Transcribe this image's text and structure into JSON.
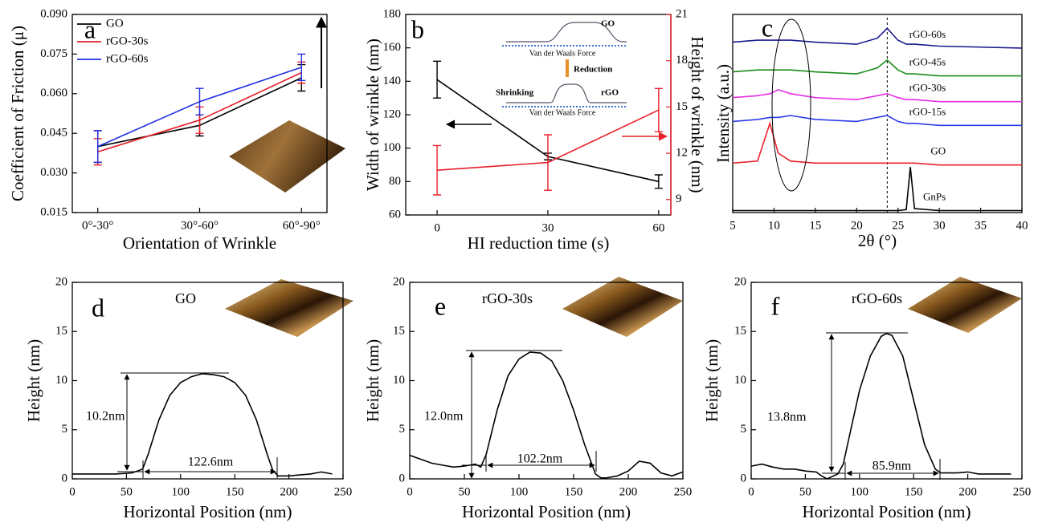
{
  "chart_data": [
    {
      "type": "line",
      "panel_label": "a",
      "xlabel": "Orientation of Wrinkle",
      "ylabel": "Coefficient of Friction (μ)",
      "categories": [
        "0°-30°",
        "30°-60°",
        "60°-90°"
      ],
      "ylim": [
        0.015,
        0.09
      ],
      "yticks": [
        0.015,
        {
          "value": 0.03,
          "label": "0.030"
        },
        0.045,
        {
          "value": 0.06,
          "label": "0.060"
        },
        0.075,
        {
          "value": 0.09,
          "label": "0.090"
        }
      ],
      "legend": "upper left",
      "series": [
        {
          "name": "GO",
          "color": "#000000",
          "values": [
            0.04,
            0.048,
            0.066
          ],
          "errors": [
            0.006,
            0.004,
            0.005
          ]
        },
        {
          "name": "rGO-30s",
          "color": "#e8202a",
          "values": [
            0.038,
            0.05,
            0.068
          ],
          "errors": [
            0.005,
            0.005,
            0.004
          ]
        },
        {
          "name": "rGO-60s",
          "color": "#1f2ee0",
          "values": [
            0.04,
            0.057,
            0.07
          ],
          "errors": [
            0.006,
            0.005,
            0.005
          ]
        }
      ]
    },
    {
      "type": "line",
      "panel_label": "b",
      "xlabel": "HI reduction time (s)",
      "ylabel": "Width of wrinkle (nm)",
      "y2label": "Height of wrinkle (nm)",
      "x": [
        0,
        30,
        60
      ],
      "xlim": [
        -8.5,
        63.3
      ],
      "xticks": [
        0,
        30,
        60
      ],
      "ylim": [
        60,
        180
      ],
      "yticks": [
        60,
        80,
        100,
        120,
        140,
        160,
        180
      ],
      "y2lim": [
        8,
        21
      ],
      "y2ticks": [
        9,
        12,
        15,
        18,
        21
      ],
      "annotations": [
        "GO",
        "Van der Waals Force",
        "Reduction",
        "Shrinking",
        "rGO",
        "Van der Waals Force"
      ],
      "series": [
        {
          "name": "Width of wrinkle",
          "color": "#000000",
          "values": [
            141,
            95,
            80
          ],
          "errors": [
            11,
            2,
            4
          ]
        },
        {
          "name": "Height of wrinkle",
          "color": "#e8202a",
          "axis": "y2",
          "values": [
            10.9,
            11.4,
            14.8
          ],
          "errors": [
            1.6,
            1.8,
            1.4
          ]
        }
      ]
    },
    {
      "type": "line",
      "panel_label": "c",
      "xlabel": "2θ (°)",
      "ylabel": "Intensity (a.u.)",
      "x": [
        5,
        8,
        9.5,
        10.5,
        12,
        15,
        20,
        22.5,
        23.7,
        25,
        26,
        26.5,
        27,
        30,
        40
      ],
      "xlim": [
        5,
        40
      ],
      "xticks": [
        5,
        10,
        15,
        20,
        25,
        30,
        35,
        40
      ],
      "ylim": [
        0,
        10
      ],
      "reference_line_x": 23.7,
      "legend": "inline",
      "series": [
        {
          "name": "rGO-60s",
          "color": "#1a1a8c",
          "values": [
            8.6,
            8.7,
            8.7,
            8.7,
            8.7,
            8.6,
            8.5,
            8.8,
            9.3,
            8.7,
            8.5,
            8.5,
            8.5,
            8.4,
            8.3
          ]
        },
        {
          "name": "rGO-45s",
          "color": "#1a8c1a",
          "values": [
            7.1,
            7.2,
            7.2,
            7.2,
            7.2,
            7.1,
            7.0,
            7.3,
            7.7,
            7.2,
            7.0,
            7.0,
            7.0,
            6.9,
            6.9
          ]
        },
        {
          "name": "rGO-30s",
          "color": "#e62ee6",
          "values": [
            5.8,
            5.9,
            6.0,
            6.2,
            6.0,
            5.8,
            5.7,
            5.9,
            6.0,
            5.8,
            5.7,
            5.7,
            5.7,
            5.6,
            5.6
          ]
        },
        {
          "name": "rGO-15s",
          "color": "#2a3ae8",
          "values": [
            4.6,
            4.7,
            4.8,
            4.8,
            4.9,
            4.7,
            4.6,
            4.8,
            4.9,
            4.6,
            4.5,
            4.5,
            4.5,
            4.4,
            4.4
          ]
        },
        {
          "name": "GO",
          "color": "#e8202a",
          "values": [
            2.5,
            2.6,
            4.5,
            3.0,
            2.6,
            2.5,
            2.5,
            2.5,
            2.5,
            2.5,
            2.5,
            2.5,
            2.5,
            2.4,
            2.4
          ]
        },
        {
          "name": "GnPs",
          "color": "#000000",
          "values": [
            0.1,
            0.1,
            0.1,
            0.1,
            0.1,
            0.1,
            0.1,
            0.1,
            0.1,
            0.1,
            0.15,
            2.3,
            0.2,
            0.1,
            0.1
          ]
        }
      ]
    },
    {
      "type": "line",
      "panel_label": "d",
      "xlabel": "Horizontal Position (nm)",
      "ylabel": "Height (nm)",
      "sample": "GO",
      "height_annotation": "10.2nm",
      "width_annotation": "122.6nm",
      "x": [
        0,
        40,
        55,
        60,
        65,
        70,
        80,
        90,
        100,
        110,
        120,
        130,
        140,
        150,
        160,
        170,
        180,
        185,
        190,
        200,
        210,
        220,
        230,
        240
      ],
      "xlim": [
        0,
        250
      ],
      "xticks": [
        0,
        50,
        100,
        150,
        200,
        250
      ],
      "ylim": [
        0,
        20
      ],
      "yticks": [
        0,
        5,
        10,
        15,
        20
      ],
      "series": [
        {
          "name": "GO",
          "color": "#000000",
          "values": [
            0.5,
            0.5,
            0.6,
            0.8,
            1.0,
            2.5,
            6,
            8.5,
            9.8,
            10.4,
            10.7,
            10.6,
            10.4,
            9.8,
            8.5,
            6,
            2.5,
            0.9,
            0.3,
            0.3,
            0.4,
            0.5,
            0.7,
            0.5
          ]
        }
      ]
    },
    {
      "type": "line",
      "panel_label": "e",
      "xlabel": "Horizontal Position (nm)",
      "ylabel": "Height (nm)",
      "sample": "rGO-30s",
      "height_annotation": "12.0nm",
      "width_annotation": "102.2nm",
      "x": [
        0,
        10,
        20,
        30,
        40,
        50,
        60,
        65,
        70,
        80,
        90,
        100,
        110,
        120,
        130,
        140,
        150,
        160,
        170,
        175,
        180,
        190,
        200,
        210,
        220,
        230,
        240,
        250
      ],
      "xlim": [
        0,
        250
      ],
      "xticks": [
        0,
        50,
        100,
        150,
        200,
        250
      ],
      "ylim": [
        0,
        20
      ],
      "yticks": [
        0,
        5,
        10,
        15,
        20
      ],
      "series": [
        {
          "name": "rGO-30s",
          "color": "#000000",
          "values": [
            2.4,
            2.0,
            1.6,
            1.4,
            1.2,
            1.3,
            1.5,
            1.2,
            2.5,
            7,
            10.5,
            12.2,
            12.9,
            12.8,
            12.0,
            10.0,
            7,
            3.5,
            0.5,
            0.1,
            0.1,
            0.3,
            0.8,
            1.8,
            1.6,
            0.6,
            0.3,
            0.7
          ]
        }
      ]
    },
    {
      "type": "line",
      "panel_label": "f",
      "xlabel": "Horizontal Position (nm)",
      "ylabel": "Height (nm)",
      "sample": "rGO-60s",
      "height_annotation": "13.8nm",
      "width_annotation": "85.9nm",
      "x": [
        0,
        10,
        20,
        30,
        40,
        50,
        60,
        65,
        70,
        80,
        85,
        90,
        100,
        110,
        120,
        125,
        130,
        140,
        150,
        160,
        170,
        175,
        180,
        190,
        200,
        210,
        220,
        230,
        240
      ],
      "xlim": [
        0,
        250
      ],
      "xticks": [
        0,
        50,
        100,
        150,
        200,
        250
      ],
      "ylim": [
        0,
        20
      ],
      "yticks": [
        0,
        5,
        10,
        15,
        20
      ],
      "series": [
        {
          "name": "rGO-60s",
          "color": "#000000",
          "values": [
            1.3,
            1.5,
            1.2,
            1.0,
            1.0,
            0.8,
            0.7,
            0.3,
            0,
            0.5,
            1.5,
            4,
            9,
            12.5,
            14.5,
            14.8,
            14.6,
            12.5,
            8,
            3.5,
            1.0,
            0.6,
            0.6,
            0.6,
            0.7,
            0.5,
            0.5,
            0.5,
            0.5
          ]
        }
      ]
    }
  ]
}
